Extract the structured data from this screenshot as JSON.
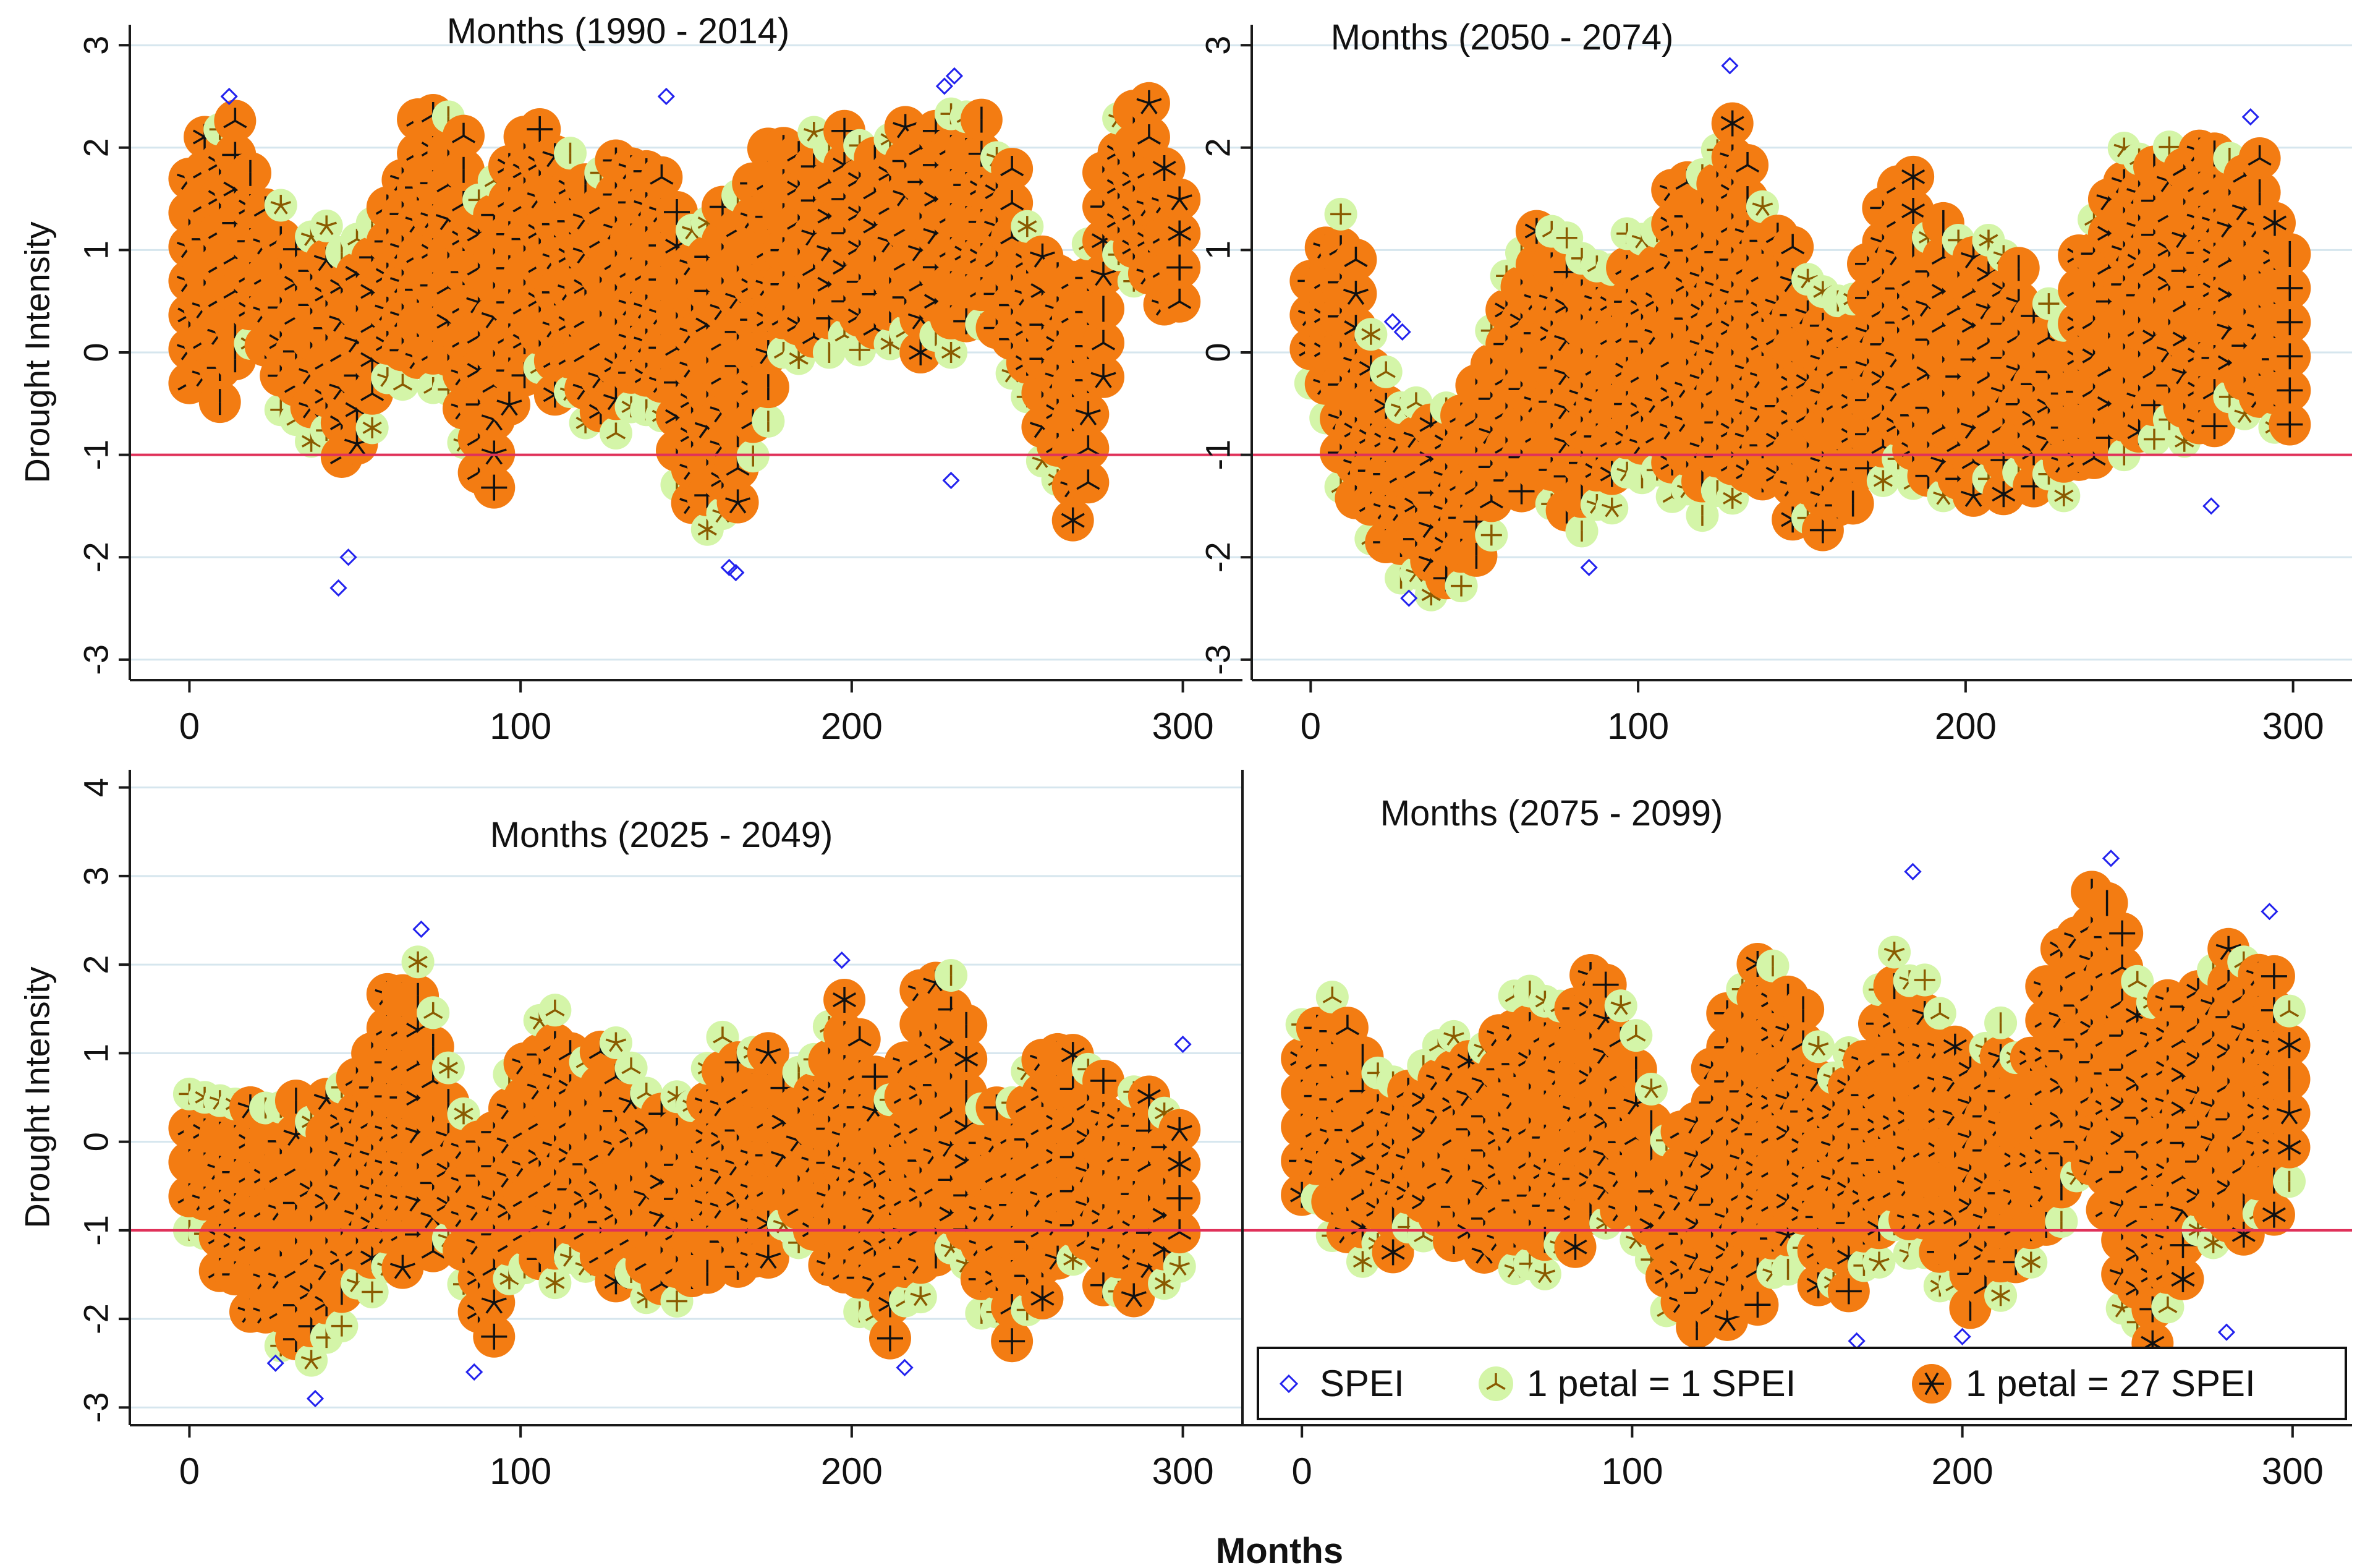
{
  "figure": {
    "xlabel": "Months",
    "colors": {
      "frame": "#1a1a1a",
      "grid": "#d6e6ee",
      "refline": "#e0315a",
      "spei": "#2222ee",
      "petal1_fill": "#d4f5a8",
      "petal1_glyph": "#8a5a00",
      "petal27_fill": "#f37c12",
      "petal27_glyph": "#111111"
    }
  },
  "legend": {
    "spei": "SPEI",
    "petal1": "1 petal = 1 SPEI",
    "petal27": "1 petal = 27 SPEI"
  },
  "chart_data": [
    {
      "type": "sunflower-scatter",
      "title": "Months (1990 - 2014)",
      "ylabel": "Drought Intensity",
      "xlim": [
        -18,
        318
      ],
      "ylim": [
        -3.2,
        3.2
      ],
      "xticks": [
        0,
        100,
        200,
        300
      ],
      "yticks": [
        -3,
        -2,
        -1,
        0,
        1,
        2,
        3
      ],
      "refline_y": -1,
      "x_range": [
        0,
        300
      ],
      "envelope": {
        "x": [
          0,
          10,
          20,
          30,
          40,
          50,
          60,
          70,
          80,
          90,
          100,
          110,
          120,
          130,
          140,
          150,
          160,
          170,
          180,
          190,
          200,
          210,
          220,
          230,
          240,
          250,
          260,
          270,
          280,
          290,
          300
        ],
        "upper": [
          1.8,
          2.5,
          1.9,
          1.3,
          1.4,
          1.1,
          1.6,
          2.5,
          2.4,
          1.5,
          2.4,
          2.2,
          1.9,
          1.9,
          2.0,
          1.3,
          1.7,
          1.9,
          2.1,
          2.3,
          2.2,
          2.2,
          2.3,
          2.4,
          2.5,
          1.7,
          1.1,
          0.9,
          2.5,
          2.5,
          1.6
        ],
        "lower": [
          -0.3,
          -0.5,
          0.2,
          -0.8,
          -0.9,
          -1.1,
          -0.4,
          -0.2,
          -0.6,
          -1.6,
          -0.2,
          -0.4,
          -0.7,
          -0.8,
          -0.5,
          -1.6,
          -1.8,
          -1.2,
          -0.1,
          0.0,
          0.0,
          0.1,
          0.0,
          0.0,
          0.3,
          -0.3,
          -1.3,
          -1.8,
          0.8,
          0.6,
          0.3
        ]
      },
      "spei_extremes": [
        [
          45,
          -2.3
        ],
        [
          48,
          -2.0
        ],
        [
          163,
          -2.1
        ],
        [
          165,
          -2.15
        ],
        [
          231,
          2.7
        ],
        [
          228,
          2.6
        ],
        [
          144,
          2.5
        ],
        [
          12,
          2.5
        ],
        [
          230,
          -1.25
        ]
      ]
    },
    {
      "type": "sunflower-scatter",
      "title": "Months (2050 - 2074)",
      "ylabel": "",
      "xlim": [
        -18,
        318
      ],
      "ylim": [
        -3.2,
        3.2
      ],
      "xticks": [
        0,
        100,
        200,
        300
      ],
      "yticks": [
        -3,
        -2,
        -1,
        0,
        1,
        2,
        3
      ],
      "refline_y": -1,
      "x_range": [
        0,
        300
      ],
      "envelope": {
        "x": [
          0,
          10,
          20,
          30,
          40,
          50,
          60,
          70,
          80,
          90,
          100,
          110,
          120,
          130,
          140,
          150,
          160,
          170,
          180,
          190,
          200,
          210,
          220,
          230,
          240,
          250,
          260,
          270,
          280,
          290,
          300
        ],
        "upper": [
          1.0,
          1.4,
          0.2,
          -0.5,
          -0.4,
          -0.4,
          1.0,
          1.4,
          1.1,
          1.0,
          1.3,
          1.6,
          2.0,
          2.4,
          1.4,
          1.0,
          0.7,
          0.9,
          2.0,
          1.3,
          1.2,
          1.1,
          0.7,
          0.4,
          1.6,
          2.1,
          2.0,
          2.1,
          2.1,
          1.9,
          1.2
        ],
        "lower": [
          -0.3,
          -1.4,
          -1.9,
          -2.3,
          -2.4,
          -2.2,
          -1.4,
          -1.3,
          -1.8,
          -1.6,
          -1.2,
          -1.4,
          -1.6,
          -1.4,
          -1.2,
          -1.8,
          -1.7,
          -1.3,
          -1.2,
          -1.4,
          -1.4,
          -1.4,
          -1.3,
          -1.4,
          -1.0,
          -1.0,
          -0.8,
          -0.9,
          -0.6,
          -0.6,
          -0.9
        ]
      },
      "spei_extremes": [
        [
          25,
          0.3
        ],
        [
          28,
          0.2
        ],
        [
          85,
          -2.1
        ],
        [
          128,
          2.8
        ],
        [
          275,
          -1.5
        ],
        [
          287,
          2.3
        ],
        [
          30,
          -2.4
        ]
      ]
    },
    {
      "type": "sunflower-scatter",
      "title": "Months (2025 - 2049)",
      "ylabel": "Drought Intensity",
      "xlim": [
        -18,
        318
      ],
      "ylim": [
        -3.2,
        4.2
      ],
      "xticks": [
        0,
        100,
        200,
        300
      ],
      "yticks": [
        -3,
        -2,
        -1,
        0,
        1,
        2,
        3,
        4
      ],
      "refline_y": -1,
      "x_range": [
        0,
        300
      ],
      "envelope": {
        "x": [
          0,
          10,
          20,
          30,
          40,
          50,
          60,
          70,
          80,
          90,
          100,
          110,
          120,
          130,
          140,
          150,
          160,
          170,
          180,
          190,
          200,
          210,
          220,
          230,
          240,
          250,
          260,
          270,
          280,
          290,
          300
        ],
        "upper": [
          0.6,
          0.5,
          0.4,
          0.5,
          0.6,
          0.9,
          1.7,
          2.2,
          0.6,
          0.3,
          1.2,
          1.6,
          1.1,
          1.2,
          0.7,
          0.6,
          1.2,
          1.3,
          0.9,
          1.1,
          1.9,
          0.3,
          1.7,
          2.0,
          0.6,
          0.8,
          1.4,
          1.2,
          0.6,
          0.6,
          0.5
        ],
        "lower": [
          -1.0,
          -1.5,
          -2.0,
          -2.4,
          -2.5,
          -1.8,
          -1.6,
          -1.2,
          -1.3,
          -2.4,
          -1.4,
          -1.6,
          -1.4,
          -1.6,
          -1.8,
          -1.8,
          -1.3,
          -1.5,
          -1.1,
          -1.2,
          -1.8,
          -2.3,
          -1.8,
          -1.2,
          -2.0,
          -2.3,
          -1.6,
          -1.2,
          -1.9,
          -1.6,
          -1.6
        ]
      },
      "spei_extremes": [
        [
          38,
          -2.9
        ],
        [
          70,
          2.4
        ],
        [
          86,
          -2.6
        ],
        [
          197,
          2.05
        ],
        [
          216,
          -2.55
        ],
        [
          26,
          -2.5
        ],
        [
          300,
          1.1
        ]
      ]
    },
    {
      "type": "sunflower-scatter",
      "title": "Months (2075 - 2099)",
      "ylabel": "",
      "xlim": [
        -18,
        318
      ],
      "ylim": [
        -3.2,
        4.2
      ],
      "xticks": [
        0,
        100,
        200,
        300
      ],
      "yticks": [],
      "refline_y": -1,
      "x_range": [
        0,
        300
      ],
      "envelope": {
        "x": [
          0,
          10,
          20,
          30,
          40,
          50,
          60,
          70,
          80,
          90,
          100,
          110,
          120,
          130,
          140,
          150,
          160,
          170,
          180,
          190,
          200,
          210,
          220,
          230,
          240,
          250,
          260,
          270,
          280,
          290,
          300
        ],
        "upper": [
          1.4,
          1.9,
          1.2,
          0.8,
          1.2,
          1.2,
          1.4,
          2.0,
          1.6,
          2.2,
          1.7,
          0.3,
          0.6,
          1.8,
          2.3,
          1.8,
          1.0,
          1.2,
          2.3,
          1.9,
          1.1,
          1.4,
          1.2,
          2.4,
          2.9,
          2.4,
          1.5,
          2.0,
          2.4,
          2.1,
          1.7
        ],
        "lower": [
          -0.6,
          -1.1,
          -1.4,
          -1.2,
          -1.0,
          -1.2,
          -1.3,
          -1.6,
          -1.3,
          -0.9,
          -1.0,
          -1.9,
          -2.1,
          -2.0,
          -1.8,
          -1.3,
          -1.8,
          -1.6,
          -1.1,
          -1.5,
          -1.9,
          -1.8,
          -1.4,
          -0.9,
          -0.2,
          -2.2,
          -2.3,
          -1.2,
          -1.1,
          -1.0,
          -0.6
        ]
      },
      "spei_extremes": [
        [
          185,
          3.05
        ],
        [
          245,
          3.2
        ],
        [
          168,
          -2.25
        ],
        [
          280,
          -2.15
        ],
        [
          200,
          -2.2
        ],
        [
          293,
          2.6
        ]
      ]
    }
  ]
}
